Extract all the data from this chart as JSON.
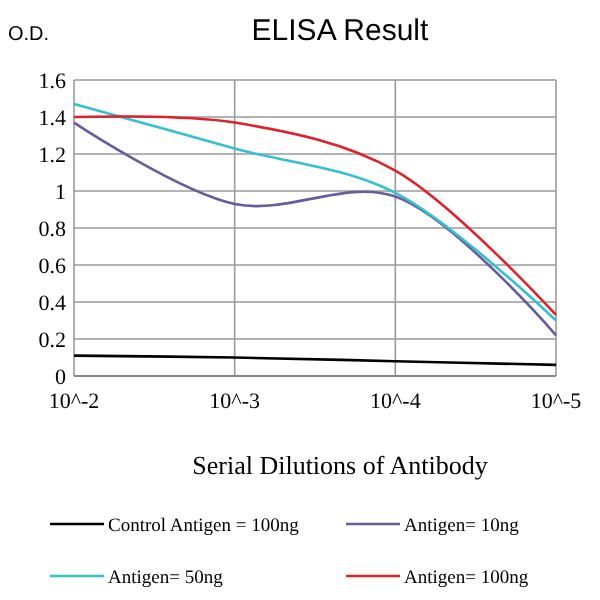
{
  "chart_data": {
    "type": "line",
    "title": "ELISA Result",
    "ylabel": "O.D.",
    "xlabel": "Serial Dilutions of Antibody",
    "categories": [
      "10^-2",
      "10^-3",
      "10^-4",
      "10^-5"
    ],
    "series": [
      {
        "name": "Control Antigen = 100ng",
        "color": "#000000",
        "values": [
          0.11,
          0.1,
          0.08,
          0.06
        ]
      },
      {
        "name": "Antigen= 10ng",
        "color": "#6a5a9e",
        "values": [
          1.37,
          0.93,
          0.97,
          0.22
        ]
      },
      {
        "name": "Antigen= 50ng",
        "color": "#33c0d0",
        "values": [
          1.47,
          1.23,
          0.99,
          0.3
        ]
      },
      {
        "name": "Antigen= 100ng",
        "color": "#e0202a",
        "values": [
          1.4,
          1.37,
          1.11,
          0.33
        ]
      }
    ],
    "ylim": [
      0,
      1.6
    ],
    "yticks": [
      0,
      0.2,
      0.4,
      0.6,
      0.8,
      1,
      1.2,
      1.4,
      1.6
    ],
    "grid": true,
    "legend": "bottom",
    "marker": "none",
    "line_style": "solid"
  }
}
